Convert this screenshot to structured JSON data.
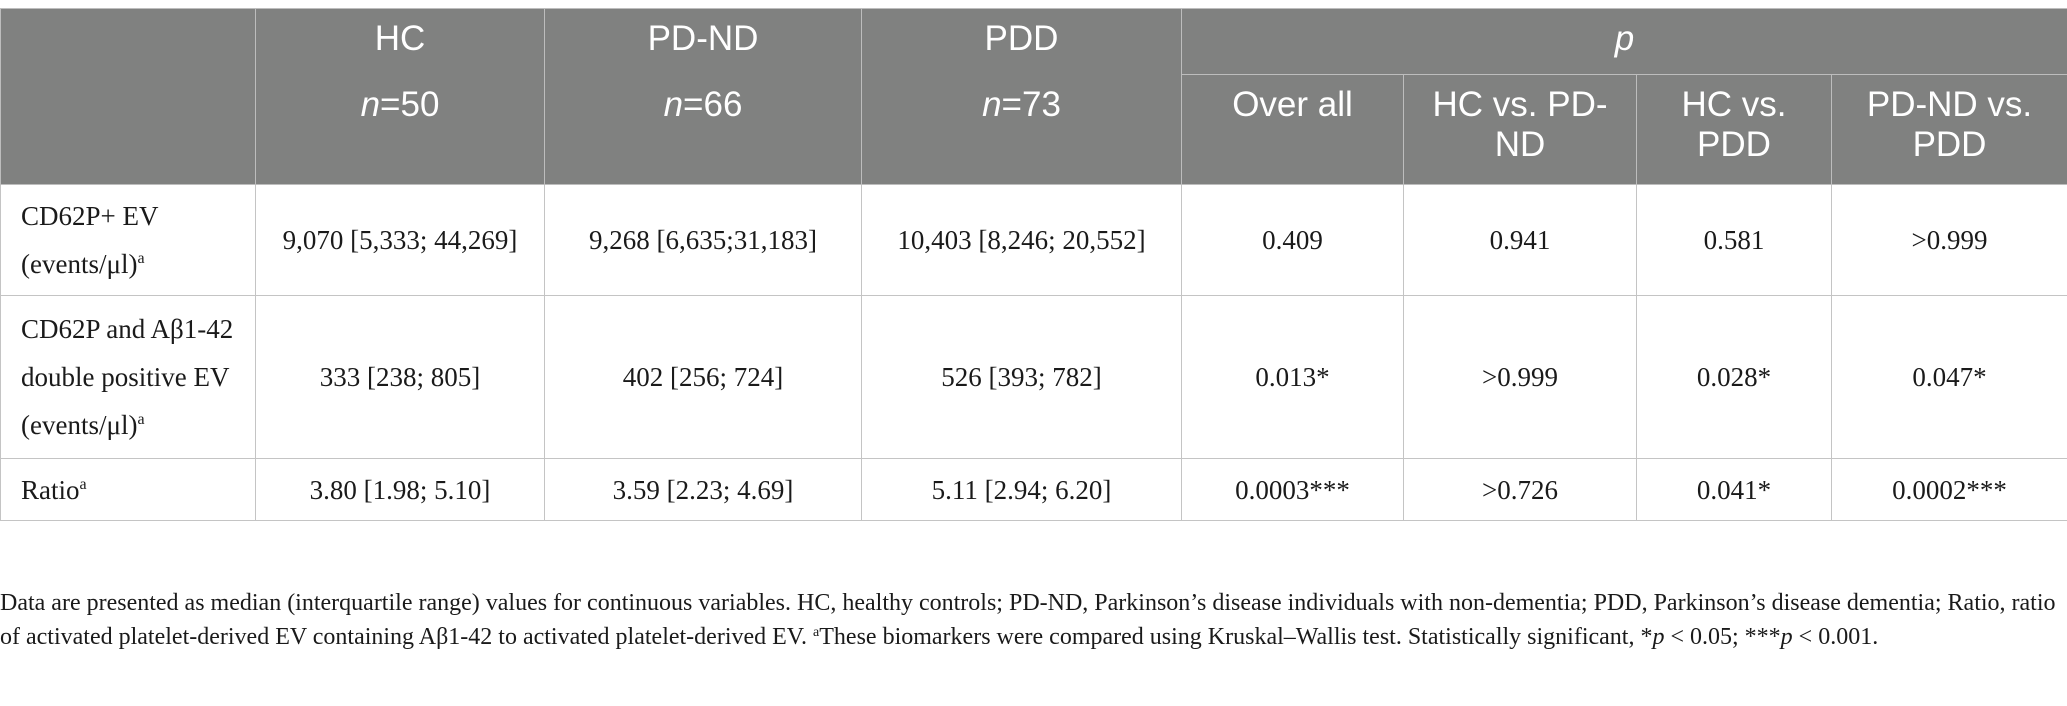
{
  "header": {
    "groups": {
      "hc": {
        "name": "HC",
        "n_prefix": "n",
        "n_value": "=50"
      },
      "pdnd": {
        "name": "PD-ND",
        "n_prefix": "n",
        "n_value": "=66"
      },
      "pdd": {
        "name": "PDD",
        "n_prefix": "n",
        "n_value": "=73"
      }
    },
    "p_label": "p",
    "p_columns": [
      "Over all",
      "HC vs. PD-ND",
      "HC vs. PDD",
      "PD-ND vs. PDD"
    ]
  },
  "rows": [
    {
      "label": "CD62P+ EV (events/μl)",
      "label_sup": "a",
      "values": [
        "9,070 [5,333; 44,269]",
        "9,268 [6,635;31,183]",
        "10,403 [8,246; 20,552]"
      ],
      "p_values": [
        "0.409",
        "0.941",
        "0.581",
        ">0.999"
      ]
    },
    {
      "label": "CD62P and Aβ1-42 double positive EV (events/μl)",
      "label_sup": "a",
      "values": [
        "333 [238; 805]",
        "402 [256; 724]",
        "526 [393; 782]"
      ],
      "p_values": [
        "0.013*",
        ">0.999",
        "0.028*",
        "0.047*"
      ]
    },
    {
      "label": "Ratio",
      "label_sup": "a",
      "values": [
        "3.80 [1.98; 5.10]",
        "3.59 [2.23; 4.69]",
        "5.11 [2.94; 6.20]"
      ],
      "p_values": [
        "0.0003***",
        ">0.726",
        "0.041*",
        "0.0002***"
      ]
    }
  ],
  "footnote": {
    "main": "Data are presented as median (interquartile range) values for continuous variables. HC, healthy controls; PD-ND, Parkinson’s disease individuals with non-dementia; PDD, Parkinson’s disease dementia; Ratio, ratio of activated platelet-derived EV containing Aβ1-42 to activated platelet-derived EV. ",
    "sup_marker": "a",
    "test_note": "These biomarkers were compared using Kruskal–Wallis test. Statistically significant, *",
    "p1": "p",
    "p1_text": " < 0.05; ***",
    "p2": "p",
    "p2_text": " < 0.001."
  }
}
